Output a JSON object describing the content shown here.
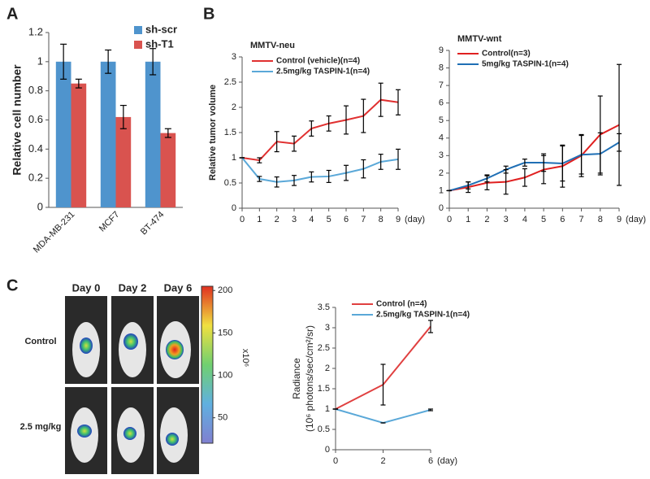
{
  "chart_data": [
    {
      "type": "bar",
      "panel": "A",
      "ylabel": "Relative cell number",
      "categories": [
        "MDA-MB-231",
        "MCF7",
        "BT-474"
      ],
      "series": [
        {
          "name": "sh-scr",
          "color": "#4f94cd",
          "values": [
            1,
            1,
            1
          ],
          "errors": [
            0.12,
            0.08,
            0.09
          ]
        },
        {
          "name": "sh-T1",
          "color": "#d9534f",
          "values": [
            0.85,
            0.62,
            0.51
          ],
          "errors": [
            0.03,
            0.08,
            0.03
          ]
        }
      ],
      "ylim": [
        0,
        1.2
      ],
      "yticks": [
        0,
        0.2,
        0.4,
        0.6,
        0.8,
        1,
        1.2
      ]
    },
    {
      "type": "line",
      "panel": "B",
      "title": "MMTV-neu",
      "ylabel": "Relative tumor volume",
      "xlabel": "(day)",
      "x": [
        0,
        1,
        2,
        3,
        4,
        5,
        6,
        7,
        8,
        9
      ],
      "xlim": [
        0,
        9
      ],
      "xticks": [
        0,
        1,
        2,
        3,
        4,
        5,
        6,
        7,
        8,
        9
      ],
      "series": [
        {
          "name": "Control (vehicle)(n=4)",
          "color": "#e03030",
          "values": [
            1,
            0.95,
            1.32,
            1.28,
            1.58,
            1.68,
            1.75,
            1.83,
            2.15,
            2.1
          ],
          "errors": [
            0,
            0.05,
            0.2,
            0.15,
            0.15,
            0.15,
            0.28,
            0.33,
            0.33,
            0.25
          ]
        },
        {
          "name": "2.5mg/kg TASPIN-1(n=4)",
          "color": "#5aa8d8",
          "values": [
            1,
            0.58,
            0.52,
            0.55,
            0.62,
            0.63,
            0.7,
            0.78,
            0.92,
            0.97
          ],
          "errors": [
            0,
            0.05,
            0.1,
            0.1,
            0.1,
            0.12,
            0.15,
            0.18,
            0.15,
            0.2
          ]
        }
      ],
      "ylim": [
        0,
        3
      ],
      "yticks": [
        0,
        0.5,
        1,
        1.5,
        2,
        2.5,
        3
      ]
    },
    {
      "type": "line",
      "title": "MMTV-wnt",
      "xlabel": "(day)",
      "x": [
        0,
        1,
        2,
        3,
        4,
        5,
        6,
        7,
        8,
        9
      ],
      "xlim": [
        0,
        9
      ],
      "xticks": [
        0,
        1,
        2,
        3,
        4,
        5,
        6,
        7,
        8,
        9
      ],
      "series": [
        {
          "name": "Control(n=3)",
          "color": "#e02020",
          "values": [
            1,
            1.2,
            1.45,
            1.5,
            1.75,
            2.2,
            2.4,
            3.0,
            4.2,
            4.75
          ],
          "errors": [
            0,
            0.3,
            0.4,
            0.7,
            0.5,
            0.8,
            1.2,
            1.2,
            2.2,
            3.45
          ]
        },
        {
          "name": "5mg/kg TASPIN-1(n=4)",
          "color": "#1f6fb5",
          "values": [
            1,
            1.3,
            1.7,
            2.2,
            2.6,
            2.6,
            2.55,
            3.05,
            3.1,
            3.75
          ],
          "errors": [
            0,
            0.2,
            0.2,
            0.2,
            0.2,
            0.5,
            1.0,
            1.1,
            1.2,
            0.5
          ]
        }
      ],
      "ylim": [
        0,
        9
      ],
      "yticks": [
        0,
        1,
        2,
        3,
        4,
        5,
        6,
        7,
        8,
        9
      ]
    },
    {
      "type": "line",
      "ylabel": [
        "Radiance",
        "(10⁶ photons/sec/cm²/sr)"
      ],
      "xlabel": "(day)",
      "categories": [
        "0",
        "2",
        "6"
      ],
      "series": [
        {
          "name": "Control (n=4)",
          "color": "#e04040",
          "values": [
            1,
            1.6,
            3.03
          ],
          "errors": [
            0,
            0.5,
            0.15
          ]
        },
        {
          "name": "2.5mg/kg TASPIN-1(n=4)",
          "color": "#5aa8d8",
          "values": [
            1,
            0.66,
            0.98
          ],
          "errors": [
            0,
            0,
            0.02
          ]
        }
      ],
      "ylim": [
        0,
        3.5
      ],
      "yticks": [
        0,
        0.5,
        1,
        1.5,
        2,
        2.5,
        3,
        3.5
      ]
    }
  ],
  "imaging": {
    "panel": "C",
    "columns": [
      "Day 0",
      "Day 2",
      "Day 6"
    ],
    "rows": [
      "Control",
      "2.5 mg/kg"
    ],
    "colorbar": {
      "label": "x10⁶",
      "lim": [
        20,
        205
      ],
      "ticks": [
        50,
        100,
        150,
        200
      ]
    }
  }
}
